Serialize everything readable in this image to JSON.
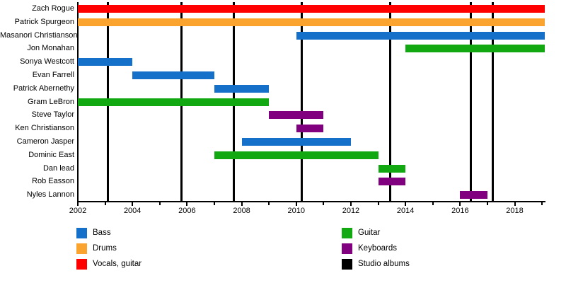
{
  "chart_data": {
    "type": "bar",
    "subtype": "gantt-band-member-timeline",
    "title": "",
    "x_axis": {
      "min": 2002,
      "max": 2019.1,
      "tick_years": [
        2002,
        2003,
        2004,
        2005,
        2006,
        2007,
        2008,
        2009,
        2010,
        2011,
        2012,
        2013,
        2014,
        2015,
        2016,
        2017,
        2018,
        2019
      ],
      "label_years": [
        "2002",
        "2004",
        "2006",
        "2008",
        "2010",
        "2012",
        "2014",
        "2016",
        "2018"
      ]
    },
    "members": [
      {
        "name": "Zach Rogue",
        "instrument": "Vocals, guitar",
        "start": 2002,
        "end": 2019.1
      },
      {
        "name": "Patrick Spurgeon",
        "instrument": "Drums",
        "start": 2002,
        "end": 2019.1
      },
      {
        "name": "Masanori Christianson",
        "instrument": "Bass",
        "start": 2010,
        "end": 2019.1
      },
      {
        "name": "Jon Monahan",
        "instrument": "Guitar",
        "start": 2014,
        "end": 2019.1
      },
      {
        "name": "Sonya Westcott",
        "instrument": "Bass",
        "start": 2002,
        "end": 2004
      },
      {
        "name": "Evan Farrell",
        "instrument": "Bass",
        "start": 2004,
        "end": 2007
      },
      {
        "name": "Patrick Abernethy",
        "instrument": "Bass",
        "start": 2007,
        "end": 2009
      },
      {
        "name": "Gram LeBron",
        "instrument": "Guitar",
        "start": 2002,
        "end": 2009
      },
      {
        "name": "Steve Taylor",
        "instrument": "Keyboards",
        "start": 2009,
        "end": 2011
      },
      {
        "name": "Ken Christianson",
        "instrument": "Keyboards",
        "start": 2010,
        "end": 2011
      },
      {
        "name": "Cameron Jasper",
        "instrument": "Bass",
        "start": 2008,
        "end": 2012
      },
      {
        "name": "Dominic East",
        "instrument": "Guitar",
        "start": 2007,
        "end": 2013
      },
      {
        "name": "Dan lead",
        "instrument": "Guitar",
        "start": 2013,
        "end": 2014
      },
      {
        "name": "Rob Easson",
        "instrument": "Keyboards",
        "start": 2013,
        "end": 2014
      },
      {
        "name": "Nyles Lannon",
        "instrument": "Keyboards",
        "start": 2016,
        "end": 2017
      }
    ],
    "studio_album_lines": [
      2003.1,
      2005.8,
      2007.7,
      2010.2,
      2013.45,
      2016.4,
      2017.2
    ],
    "instrument_colors": {
      "Bass": "#1470C8",
      "Drums": "#FBA32F",
      "Vocals, guitar": "#FE0000",
      "Guitar": "#12A812",
      "Keyboards": "#800080",
      "Studio albums": "#000000"
    },
    "legend": {
      "columns": [
        [
          {
            "label": "Bass",
            "color": "#1470C8"
          },
          {
            "label": "Drums",
            "color": "#FBA32F"
          },
          {
            "label": "Vocals, guitar",
            "color": "#FE0000"
          }
        ],
        [
          {
            "label": "Guitar",
            "color": "#12A812"
          },
          {
            "label": "Keyboards",
            "color": "#800080"
          },
          {
            "label": "Studio albums",
            "color": "#000000"
          }
        ]
      ]
    }
  }
}
